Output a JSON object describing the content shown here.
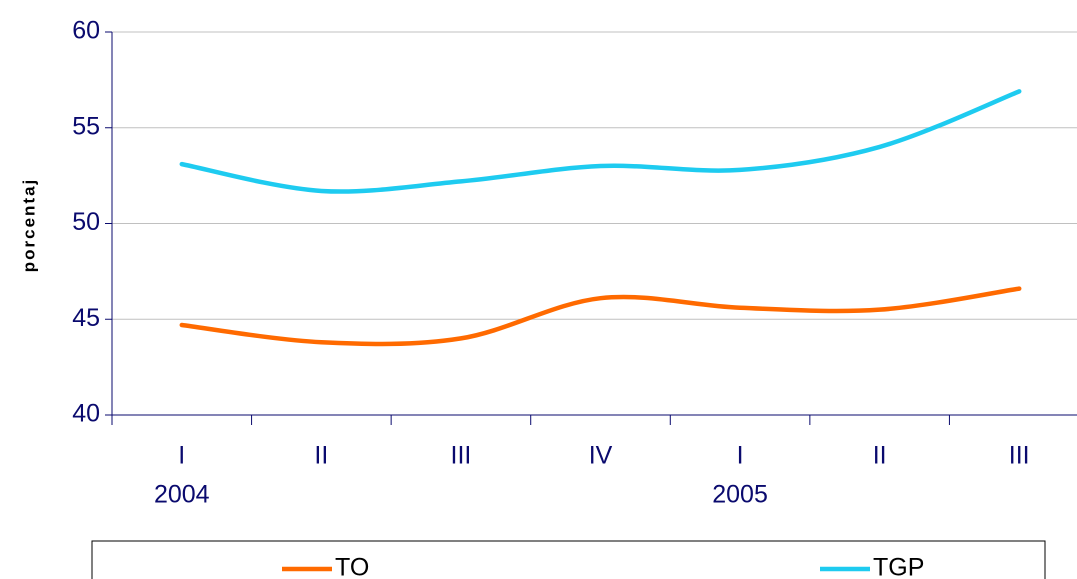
{
  "chart_data": {
    "type": "line",
    "y_label": "porcentaj",
    "categories": [
      "I",
      "II",
      "III",
      "IV",
      "I",
      "II",
      "III"
    ],
    "year_labels": [
      "2004",
      null,
      null,
      null,
      "2005",
      null,
      null
    ],
    "series": [
      {
        "name": "TO",
        "color": "#ff6a00",
        "values": [
          44.7,
          43.8,
          44.0,
          46.1,
          45.6,
          45.5,
          46.6
        ]
      },
      {
        "name": "TGP",
        "color": "#1ecbf0",
        "values": [
          53.1,
          51.7,
          52.2,
          53.0,
          52.8,
          54.0,
          56.9
        ]
      }
    ],
    "ylim": [
      40,
      60
    ],
    "yticks": [
      40,
      45,
      50,
      55,
      60
    ],
    "grid": true,
    "smooth": true,
    "legend": "bottom"
  }
}
